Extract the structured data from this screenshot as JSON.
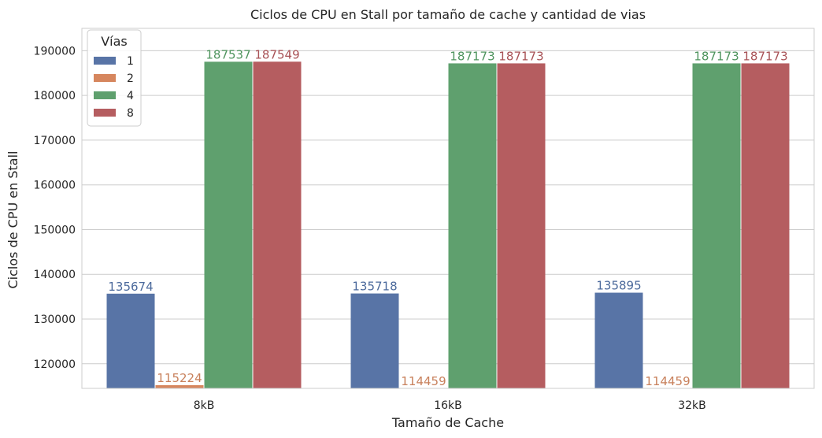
{
  "chart_data": {
    "type": "bar",
    "title": "Ciclos de CPU en Stall por tamaño de cache y cantidad de vias",
    "xlabel": "Tamaño de Cache",
    "ylabel": "Ciclos de CPU en Stall",
    "categories": [
      "8kB",
      "16kB",
      "32kB"
    ],
    "ylim": [
      114500,
      195000
    ],
    "yticks": [
      120000,
      130000,
      140000,
      150000,
      160000,
      170000,
      180000,
      190000
    ],
    "grid": true,
    "legend": {
      "title": "Vías",
      "placement": "top-left"
    },
    "series": [
      {
        "name": "1",
        "color": "#5874a6",
        "label_color": "#4c6a9c",
        "values": [
          135674,
          135718,
          135895
        ]
      },
      {
        "name": "2",
        "color": "#d6865e",
        "label_color": "#c8805b",
        "values": [
          115224,
          114459,
          114459
        ]
      },
      {
        "name": "4",
        "color": "#5fa06e",
        "label_color": "#4f945e",
        "values": [
          187537,
          187173,
          187173
        ]
      },
      {
        "name": "8",
        "color": "#b55d60",
        "label_color": "#a85256",
        "values": [
          187549,
          187173,
          187173
        ]
      }
    ]
  }
}
